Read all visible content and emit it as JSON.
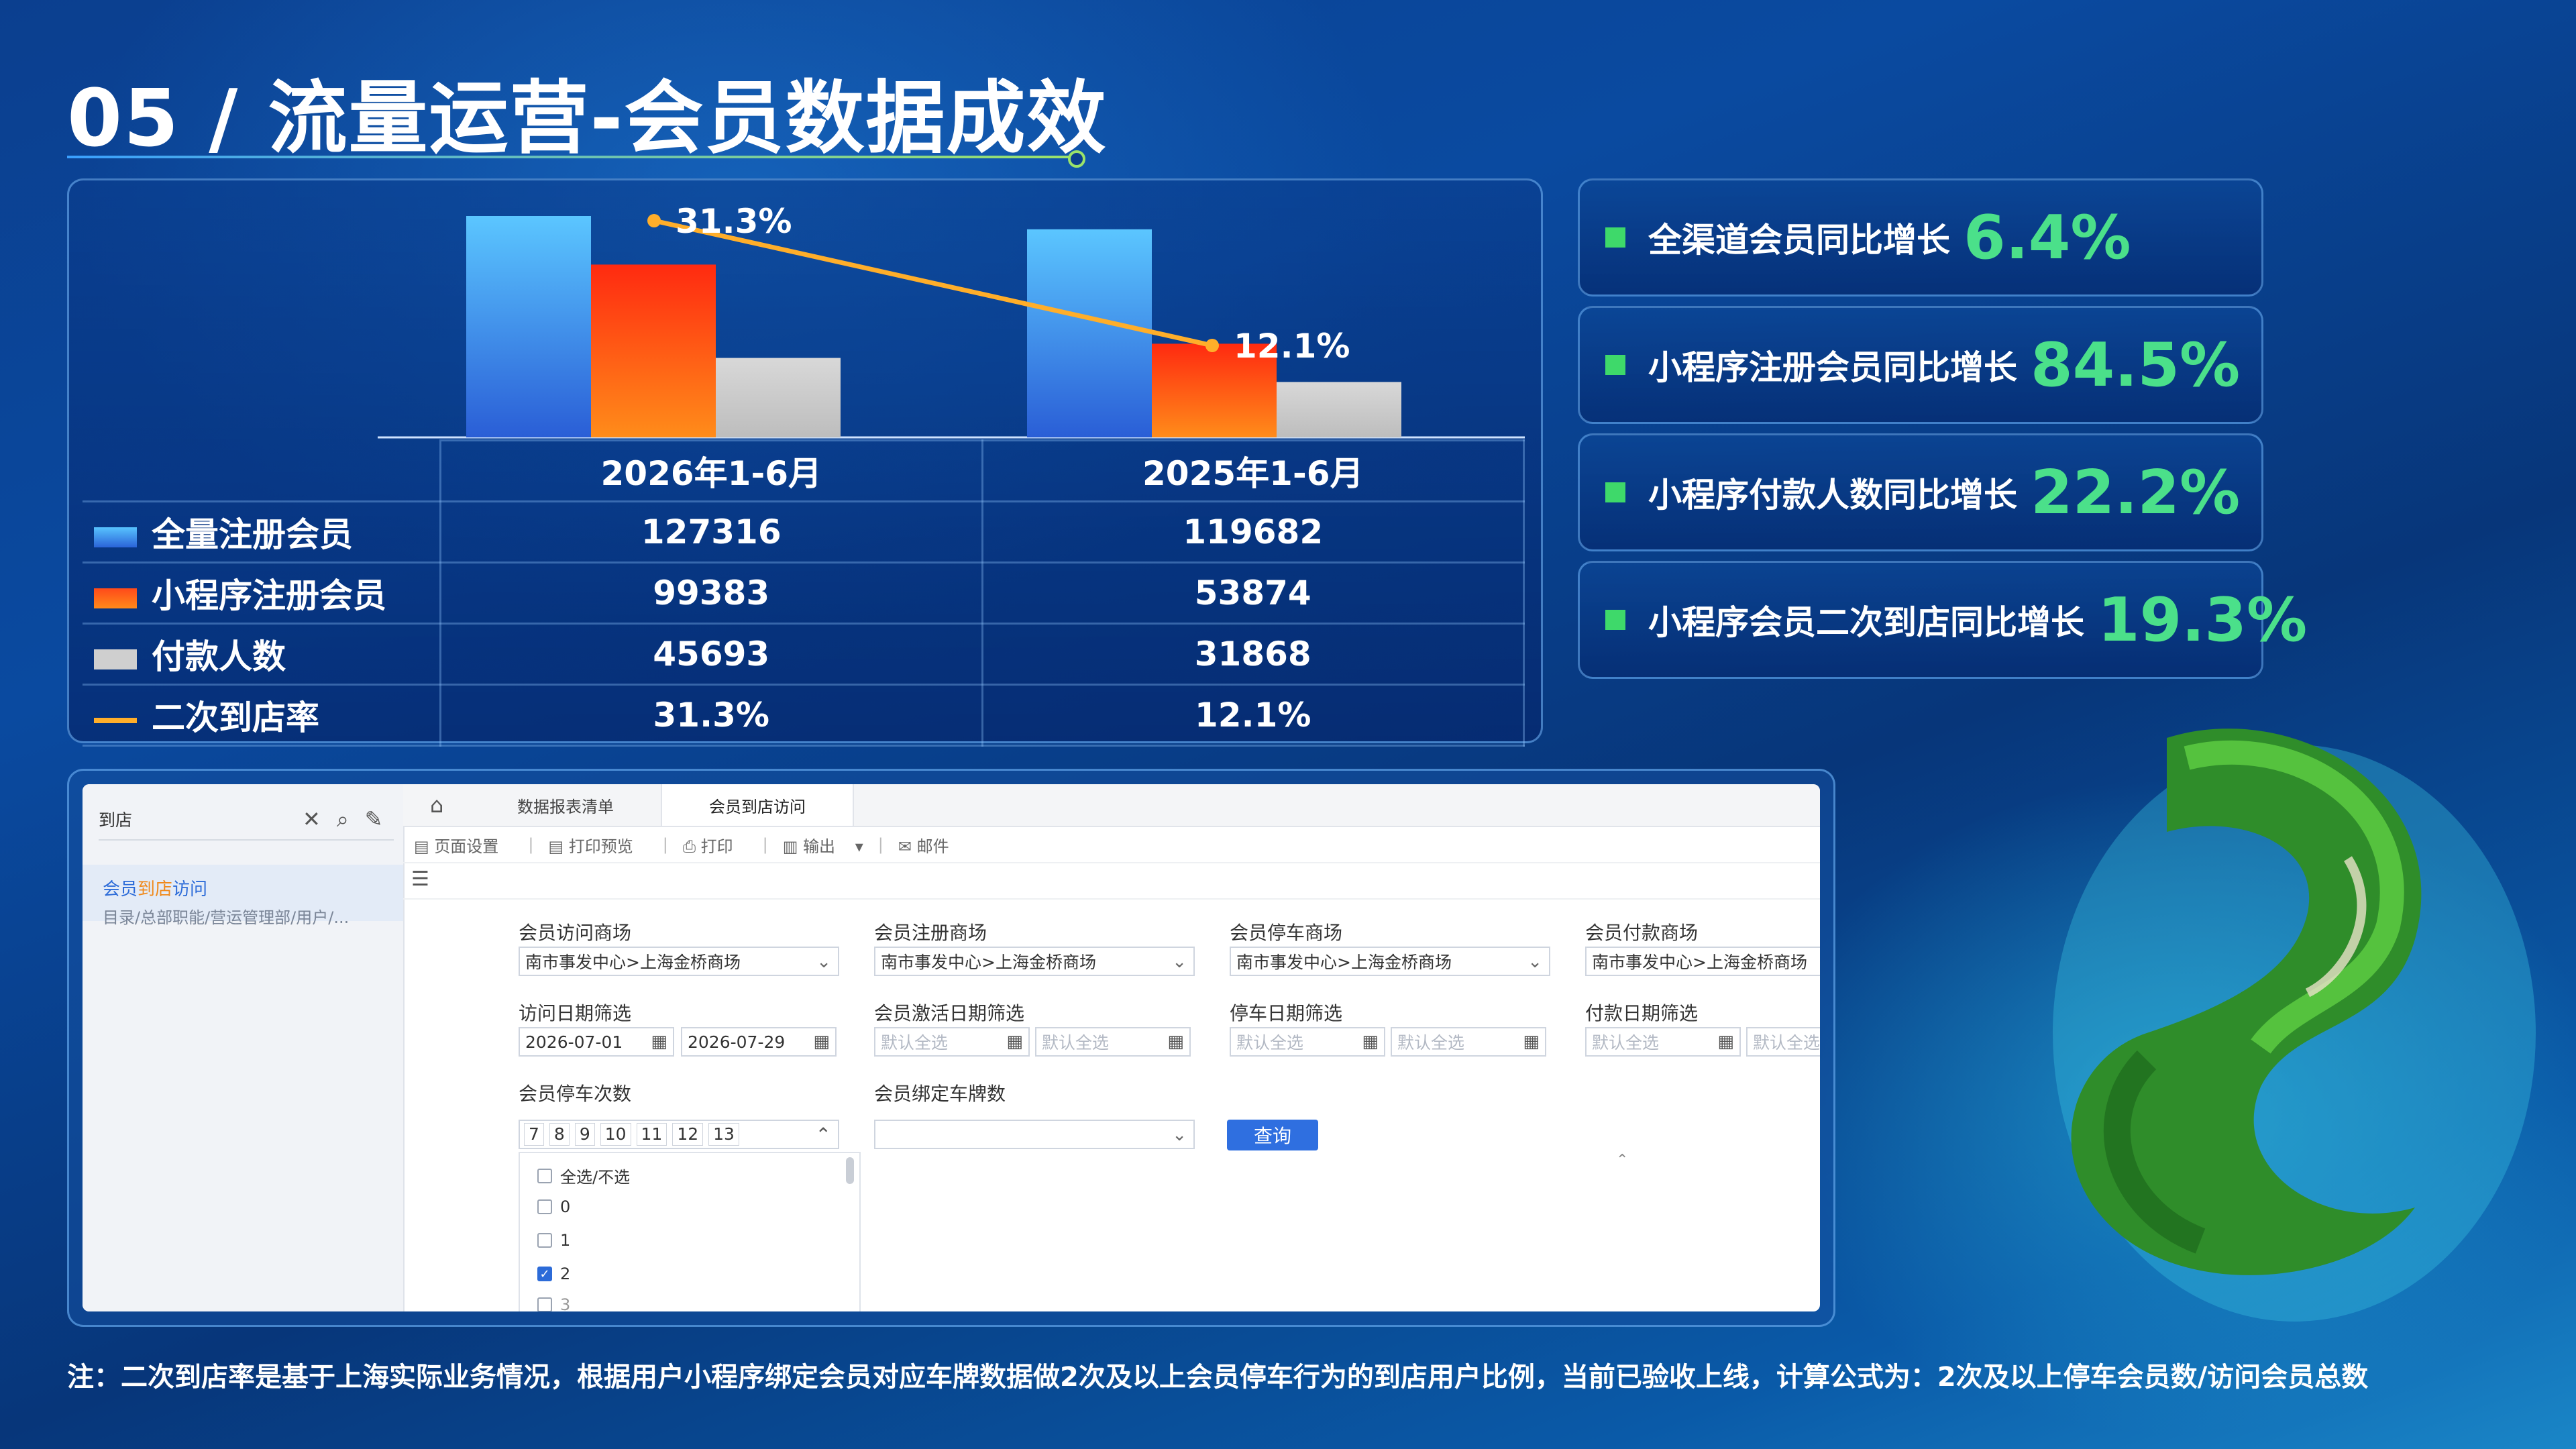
{
  "title": "05 / 流量运营-会员数据成效",
  "chart_data": {
    "type": "bar",
    "categories": [
      "2026年1-6月",
      "2025年1-6月"
    ],
    "series": [
      {
        "name": "全量注册会员",
        "values": [
          127316,
          119682
        ],
        "color": "#3a8ff0"
      },
      {
        "name": "小程序注册会员",
        "values": [
          99383,
          53874
        ],
        "color": "#ff5a1a"
      },
      {
        "name": "付款人数",
        "values": [
          45693,
          31868
        ],
        "color": "#cccccc"
      },
      {
        "name": "二次到店率",
        "values": [
          31.3,
          12.1
        ],
        "color": "#ffae2a",
        "kind": "line",
        "unit": "%"
      }
    ],
    "line_labels": [
      "31.3%",
      "12.1%"
    ]
  },
  "table": {
    "headers": [
      "2026年1-6月",
      "2025年1-6月"
    ],
    "rows": [
      {
        "label": "全量注册会员",
        "values": [
          "127316",
          "119682"
        ],
        "swatch": "blue"
      },
      {
        "label": "小程序注册会员",
        "values": [
          "99383",
          "53874"
        ],
        "swatch": "orange"
      },
      {
        "label": "付款人数",
        "values": [
          "45693",
          "31868"
        ],
        "swatch": "gray"
      },
      {
        "label": "二次到店率",
        "values": [
          "31.3%",
          "12.1%"
        ],
        "swatch": "line"
      }
    ]
  },
  "stats": [
    {
      "label": "全渠道会员同比增长",
      "value": "6.4%"
    },
    {
      "label": "小程序注册会员同比增长",
      "value": "84.5%"
    },
    {
      "label": "小程序付款人数同比增长",
      "value": "22.2%"
    },
    {
      "label": "小程序会员二次到店同比增长",
      "value": "19.3%"
    }
  ],
  "screenshot": {
    "search_value": "到店",
    "side_item_prefix": "会员",
    "side_item_highlight": "到店",
    "side_item_suffix": "访问",
    "side_item_path": "目录/总部职能/营运管理部/用户/...",
    "tabs": [
      "数据报表清单",
      "会员到店访问"
    ],
    "toolbar": [
      "页面设置",
      "打印预览",
      "打印",
      "输出",
      "邮件"
    ],
    "filters": {
      "visit_mall_label": "会员访问商场",
      "visit_mall_value": "南市事发中心>上海金桥商场",
      "reg_mall_label": "会员注册商场",
      "reg_mall_value": "南市事发中心>上海金桥商场",
      "park_mall_label": "会员停车商场",
      "park_mall_value": "南市事发中心>上海金桥商场",
      "pay_mall_label": "会员付款商场",
      "pay_mall_value": "南市事发中心>上海金桥商场",
      "visit_date_label": "访问日期筛选",
      "visit_date_start": "2026-07-01",
      "visit_date_end": "2026-07-29",
      "activate_date_label": "会员激活日期筛选",
      "park_date_label": "停车日期筛选",
      "pay_date_label": "付款日期筛选",
      "date_placeholder": "默认全选",
      "park_count_label": "会员停车次数",
      "park_count_chips": [
        "7",
        "8",
        "9",
        "10",
        "11",
        "12",
        "13"
      ],
      "plate_count_label": "会员绑定车牌数",
      "query_button": "查询"
    },
    "dropdown": {
      "select_all": "全选/不选",
      "options": [
        {
          "label": "0",
          "checked": false
        },
        {
          "label": "1",
          "checked": false
        },
        {
          "label": "2",
          "checked": true
        },
        {
          "label": "3",
          "checked": false
        }
      ]
    }
  },
  "note": "注：二次到店率是基于上海实际业务情况，根据用户小程序绑定会员对应车牌数据做2次及以上会员停车行为的到店用户比例，当前已验收上线，计算公式为：2次及以上停车会员数/访问会员总数"
}
